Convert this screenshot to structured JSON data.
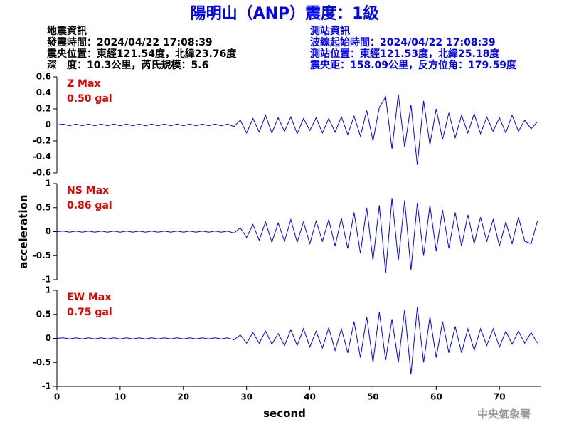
{
  "header": {
    "title": "陽明山（ANP）震度：1級",
    "left": [
      "地震資訊",
      "發震時間：2024/04/22 17:08:39",
      "震央位置：東經121.54度，北緯23.76度",
      "深　度：10.3公里，芮氏規模：5.6"
    ],
    "right": [
      "測站資訊",
      "波線起始時間：2024/04/22 17:08:39",
      "測站位置：東經121.53度，北緯25.18度",
      "震央距：158.09公里，反方位角：179.59度"
    ],
    "footer": "中央氣象署"
  },
  "chart_data": [
    {
      "type": "line",
      "name": "Z Max",
      "max_label": "0.50 gal",
      "color": "#0000ff",
      "x": [
        0,
        1,
        2,
        3,
        4,
        5,
        6,
        7,
        8,
        9,
        10,
        11,
        12,
        13,
        14,
        15,
        16,
        17,
        18,
        19,
        20,
        21,
        22,
        23,
        24,
        25,
        26,
        27,
        28,
        29,
        30,
        31,
        32,
        33,
        34,
        35,
        36,
        37,
        38,
        39,
        40,
        41,
        42,
        43,
        44,
        45,
        46,
        47,
        48,
        49,
        50,
        51,
        52,
        53,
        54,
        55,
        56,
        57,
        58,
        59,
        60,
        61,
        62,
        63,
        64,
        65,
        66,
        67,
        68,
        69,
        70,
        71,
        72,
        73,
        74,
        75,
        76
      ],
      "values": [
        0,
        0.01,
        -0.01,
        0.01,
        -0.01,
        0.01,
        -0.01,
        0.01,
        -0.01,
        0.01,
        -0.01,
        0.01,
        -0.01,
        0.01,
        -0.01,
        0.01,
        -0.01,
        0.01,
        -0.01,
        0.01,
        -0.01,
        0.01,
        -0.01,
        0.01,
        -0.01,
        0.01,
        -0.01,
        0.01,
        -0.02,
        0.06,
        -0.1,
        0.08,
        -0.09,
        0.12,
        -0.1,
        0.09,
        -0.08,
        0.1,
        -0.11,
        0.08,
        -0.07,
        0.09,
        -0.1,
        0.08,
        -0.09,
        0.1,
        -0.12,
        0.11,
        -0.14,
        0.18,
        -0.2,
        0.22,
        0.35,
        -0.3,
        0.38,
        -0.28,
        0.25,
        -0.5,
        0.3,
        -0.25,
        0.2,
        -0.18,
        0.15,
        -0.16,
        0.12,
        -0.1,
        0.14,
        -0.11,
        0.1,
        -0.08,
        0.09,
        -0.1,
        0.12,
        -0.08,
        0.06,
        -0.05,
        0.04
      ],
      "xlim": [
        0,
        76.5
      ],
      "ylim": [
        -0.6,
        0.6
      ],
      "yticks": [
        0.6,
        0.4,
        0.2,
        0,
        -0.2,
        -0.4,
        -0.6
      ]
    },
    {
      "type": "line",
      "name": "NS Max",
      "max_label": "0.86 gal",
      "color": "#0000ff",
      "ylabel": "acceleration",
      "x": [
        0,
        1,
        2,
        3,
        4,
        5,
        6,
        7,
        8,
        9,
        10,
        11,
        12,
        13,
        14,
        15,
        16,
        17,
        18,
        19,
        20,
        21,
        22,
        23,
        24,
        25,
        26,
        27,
        28,
        29,
        30,
        31,
        32,
        33,
        34,
        35,
        36,
        37,
        38,
        39,
        40,
        41,
        42,
        43,
        44,
        45,
        46,
        47,
        48,
        49,
        50,
        51,
        52,
        53,
        54,
        55,
        56,
        57,
        58,
        59,
        60,
        61,
        62,
        63,
        64,
        65,
        66,
        67,
        68,
        69,
        70,
        71,
        72,
        73,
        74,
        75,
        76
      ],
      "values": [
        0,
        0.01,
        -0.01,
        0.01,
        -0.01,
        0.01,
        -0.01,
        0.01,
        -0.01,
        0.01,
        -0.01,
        0.01,
        -0.01,
        0.01,
        -0.01,
        0.01,
        -0.01,
        0.01,
        -0.01,
        0.01,
        -0.01,
        0.01,
        -0.01,
        0.01,
        -0.01,
        0.01,
        -0.01,
        0.01,
        -0.03,
        0.08,
        -0.12,
        0.15,
        -0.18,
        0.2,
        -0.22,
        0.18,
        -0.2,
        0.25,
        -0.22,
        0.2,
        -0.25,
        0.22,
        -0.2,
        0.25,
        -0.3,
        0.28,
        -0.35,
        0.4,
        -0.45,
        0.5,
        -0.6,
        0.55,
        -0.86,
        0.7,
        -0.6,
        0.65,
        -0.8,
        0.6,
        -0.5,
        0.55,
        -0.4,
        0.45,
        -0.35,
        0.4,
        -0.3,
        0.35,
        -0.25,
        0.3,
        -0.2,
        0.25,
        -0.3,
        0.2,
        -0.25,
        0.3,
        -0.2,
        -0.25,
        0.22
      ],
      "xlim": [
        0,
        76.5
      ],
      "ylim": [
        -1,
        1
      ],
      "yticks": [
        1,
        0.5,
        0,
        -0.5,
        -1
      ]
    },
    {
      "type": "line",
      "name": "EW Max",
      "max_label": "0.75 gal",
      "color": "#0000ff",
      "xlabel": "second",
      "x": [
        0,
        1,
        2,
        3,
        4,
        5,
        6,
        7,
        8,
        9,
        10,
        11,
        12,
        13,
        14,
        15,
        16,
        17,
        18,
        19,
        20,
        21,
        22,
        23,
        24,
        25,
        26,
        27,
        28,
        29,
        30,
        31,
        32,
        33,
        34,
        35,
        36,
        37,
        38,
        39,
        40,
        41,
        42,
        43,
        44,
        45,
        46,
        47,
        48,
        49,
        50,
        51,
        52,
        53,
        54,
        55,
        56,
        57,
        58,
        59,
        60,
        61,
        62,
        63,
        64,
        65,
        66,
        67,
        68,
        69,
        70,
        71,
        72,
        73,
        74,
        75,
        76
      ],
      "values": [
        0,
        0.01,
        -0.01,
        0.01,
        -0.01,
        0.01,
        -0.01,
        0.01,
        -0.01,
        0.01,
        -0.01,
        0.01,
        -0.01,
        0.01,
        -0.01,
        0.01,
        -0.01,
        0.01,
        -0.01,
        0.01,
        -0.01,
        0.01,
        -0.01,
        0.01,
        -0.01,
        0.01,
        -0.01,
        0.01,
        -0.03,
        0.07,
        -0.1,
        0.12,
        -0.1,
        0.15,
        -0.12,
        0.1,
        -0.15,
        0.18,
        -0.15,
        0.2,
        -0.18,
        0.15,
        -0.2,
        0.22,
        -0.25,
        0.2,
        -0.3,
        0.35,
        -0.4,
        0.45,
        -0.5,
        0.55,
        -0.45,
        0.4,
        -0.5,
        0.6,
        -0.75,
        0.65,
        -0.5,
        0.45,
        -0.4,
        0.35,
        -0.3,
        0.25,
        -0.3,
        0.2,
        -0.25,
        0.2,
        -0.15,
        0.2,
        -0.18,
        0.15,
        -0.12,
        0.15,
        -0.1,
        0.12,
        -0.1
      ],
      "xlim": [
        0,
        76.5
      ],
      "ylim": [
        -1,
        1
      ],
      "yticks": [
        1,
        0.5,
        0,
        -0.5,
        -1
      ],
      "xticks": [
        0,
        10,
        20,
        30,
        40,
        50,
        60,
        70
      ]
    }
  ]
}
